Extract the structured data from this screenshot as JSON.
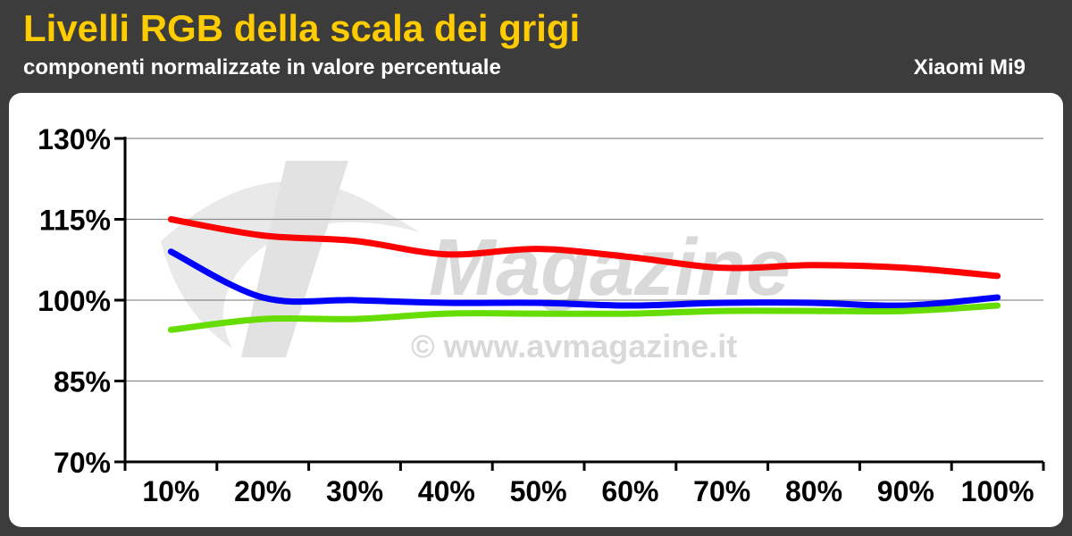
{
  "header": {
    "title": "Livelli RGB della scala dei grigi",
    "subtitle": "componenti normalizzate in valore percentuale",
    "device": "Xiaomi Mi9"
  },
  "watermark": {
    "brand": "Magazine",
    "url": "© www.avmagazine.it"
  },
  "colors": {
    "background": "#3c3c3c",
    "title": "#ffcc00",
    "red": "#ff0000",
    "green": "#66dd00",
    "blue": "#0000ff"
  },
  "chart_data": {
    "type": "line",
    "x": [
      "10%",
      "20%",
      "30%",
      "40%",
      "50%",
      "60%",
      "70%",
      "80%",
      "90%",
      "100%"
    ],
    "ylim": [
      70,
      130
    ],
    "yticks": [
      70,
      85,
      100,
      115,
      130
    ],
    "ytick_labels": [
      "70%",
      "85%",
      "100%",
      "115%",
      "130%"
    ],
    "grid": true,
    "legend": "none",
    "series": [
      {
        "color": "#ff0000",
        "values": [
          115,
          112,
          111,
          108.5,
          109.5,
          108,
          106,
          106.5,
          106,
          104.5
        ]
      },
      {
        "color": "#0000ff",
        "values": [
          109,
          100.5,
          100,
          99.5,
          99.5,
          99,
          99.5,
          99.5,
          99,
          100.5
        ]
      },
      {
        "color": "#66dd00",
        "values": [
          94.5,
          96.5,
          96.5,
          97.5,
          97.5,
          97.5,
          98,
          98,
          98,
          99
        ]
      }
    ]
  }
}
